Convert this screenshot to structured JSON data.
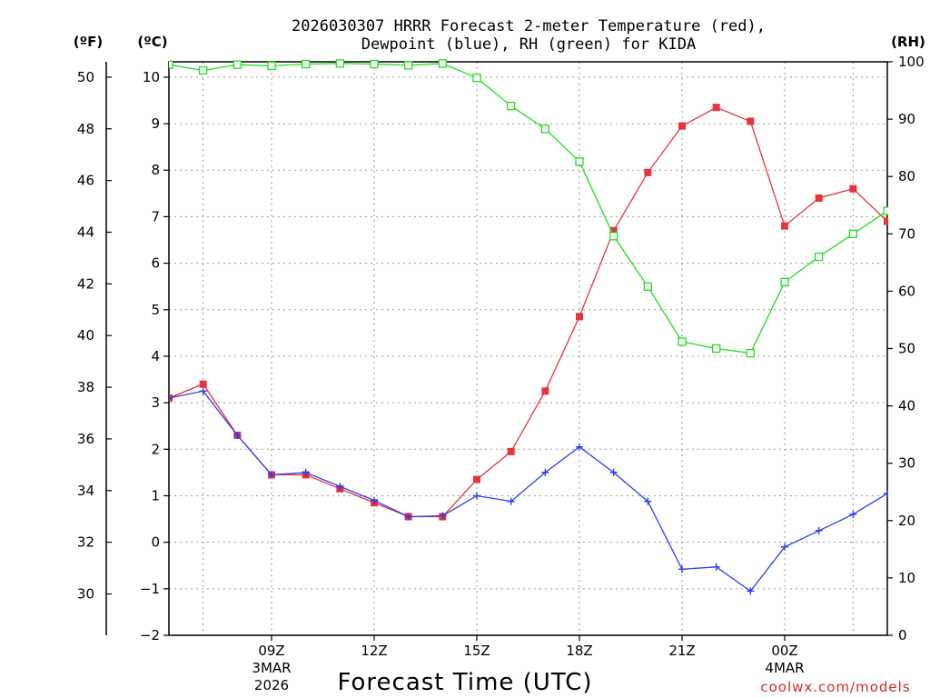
{
  "chart_data": {
    "type": "line",
    "title_line1": "2026030307 HRRR Forecast 2-meter Temperature (red),",
    "title_line2": "Dewpoint (blue), RH (green) for KIDA",
    "units": {
      "fahrenheit": "(ºF)",
      "celsius": "(ºC)",
      "rh": "(RH)"
    },
    "xlabel": "Forecast Time (UTC)",
    "credit": "coolwx.com/models",
    "xlim": [
      6,
      27
    ],
    "ylim_c": [
      -2,
      10.33
    ],
    "ylim_rh": [
      0,
      100
    ],
    "x_ticks": [
      {
        "hour": 9,
        "label": "09Z",
        "sub1": "3MAR",
        "sub2": "2026"
      },
      {
        "hour": 12,
        "label": "12Z",
        "sub1": "",
        "sub2": ""
      },
      {
        "hour": 15,
        "label": "15Z",
        "sub1": "",
        "sub2": ""
      },
      {
        "hour": 18,
        "label": "18Z",
        "sub1": "",
        "sub2": ""
      },
      {
        "hour": 21,
        "label": "21Z",
        "sub1": "",
        "sub2": ""
      },
      {
        "hour": 24,
        "label": "00Z",
        "sub1": "4MAR",
        "sub2": ""
      }
    ],
    "celsius_ticks": [
      -2,
      -1,
      0,
      1,
      2,
      3,
      4,
      5,
      6,
      7,
      8,
      9,
      10
    ],
    "fahrenheit_ticks": [
      30,
      32,
      34,
      36,
      38,
      40,
      42,
      44,
      46,
      48,
      50
    ],
    "rh_ticks": [
      0,
      10,
      20,
      30,
      40,
      50,
      60,
      70,
      80,
      90,
      100
    ],
    "hours": [
      6,
      7,
      8,
      9,
      10,
      11,
      12,
      13,
      14,
      15,
      16,
      17,
      18,
      19,
      20,
      21,
      22,
      23,
      24,
      25,
      26,
      27
    ],
    "series": [
      {
        "name": "Temperature",
        "axis": "celsius",
        "color": "#e8323c",
        "marker": "filled-square",
        "values": [
          3.1,
          3.4,
          2.3,
          1.45,
          1.45,
          1.15,
          0.85,
          0.55,
          0.55,
          1.35,
          1.95,
          3.25,
          4.85,
          6.7,
          7.95,
          8.95,
          9.35,
          9.05,
          6.8,
          7.4,
          7.6,
          6.9
        ]
      },
      {
        "name": "Dewpoint",
        "axis": "celsius",
        "color": "#2b3df0",
        "marker": "plus",
        "values": [
          3.1,
          3.25,
          2.3,
          1.45,
          1.5,
          1.2,
          0.9,
          0.55,
          0.57,
          1.0,
          0.88,
          1.5,
          2.05,
          1.5,
          0.88,
          -0.58,
          -0.53,
          -1.05,
          -0.1,
          0.25,
          0.6,
          1.05
        ]
      },
      {
        "name": "RH",
        "axis": "rh",
        "color": "#22dd22",
        "marker": "open-square",
        "values": [
          99.5,
          98.5,
          99.5,
          99.3,
          99.6,
          99.7,
          99.6,
          99.4,
          99.7,
          97.2,
          92.3,
          88.3,
          82.6,
          69.6,
          60.8,
          51.2,
          50.0,
          49.2,
          61.6,
          66.0,
          70.0,
          74.0
        ]
      }
    ]
  }
}
